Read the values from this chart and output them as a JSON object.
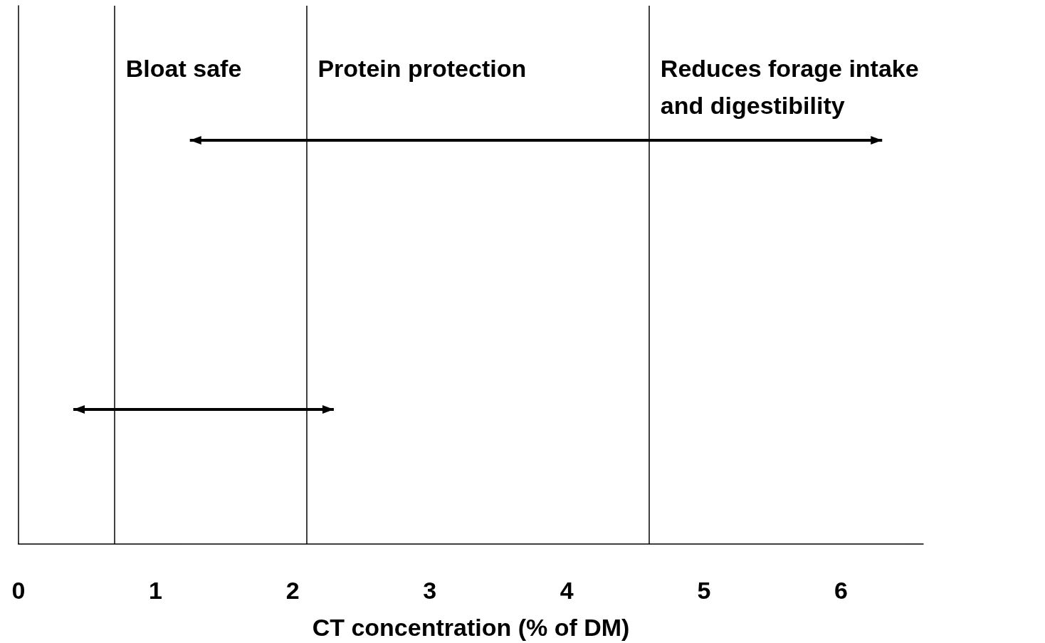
{
  "chart_data": {
    "type": "bar",
    "orientation": "horizontal",
    "xlabel": "CT concentration (% of DM)",
    "categories": [
      null,
      null
    ],
    "base": [
      1.25,
      0.4
    ],
    "values": [
      5.05,
      1.9
    ],
    "color": "#000000",
    "xlim": [
      0,
      6.6
    ],
    "xticks": [
      0,
      1,
      2,
      3,
      4,
      5,
      6
    ],
    "ref_lines": [
      {
        "axis": "x",
        "value": 0.7,
        "label": "Bloat safe",
        "color": "#000000"
      },
      {
        "axis": "x",
        "value": 2.1,
        "label": "Protein protection",
        "color": "#000000"
      },
      {
        "axis": "x",
        "value": 4.6,
        "label": "Reduces forage intake and digestibility",
        "color": "#000000"
      }
    ]
  }
}
